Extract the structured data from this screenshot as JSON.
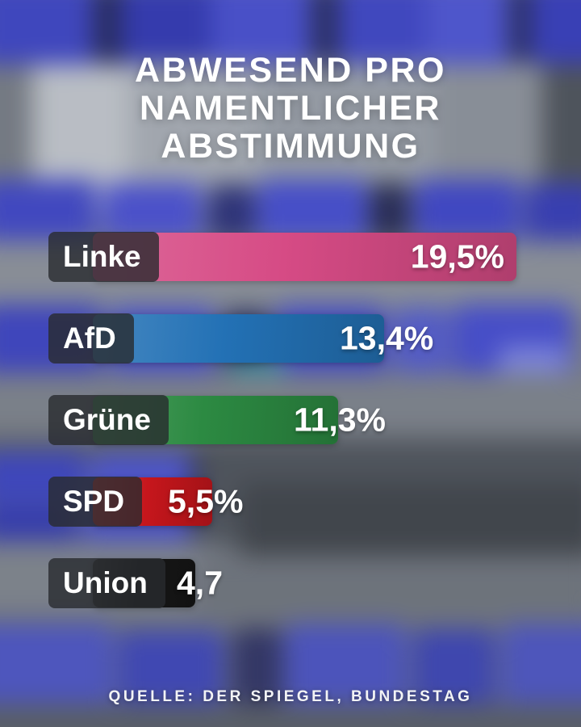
{
  "title_lines": [
    "ABWESEND PRO",
    "NAMENTLICHER",
    "ABSTIMMUNG"
  ],
  "source": "QUELLE: DER SPIEGEL, BUNDESTAG",
  "chart_data": {
    "type": "bar",
    "orientation": "horizontal",
    "title": "ABWESEND PRO NAMENTLICHER ABSTIMMUNG",
    "categories": [
      "Linke",
      "AfD",
      "Grüne",
      "SPD",
      "Union"
    ],
    "values": [
      19.5,
      13.4,
      11.3,
      5.5,
      4.7
    ],
    "value_labels": [
      "19,5%",
      "13,4%",
      "11,3%",
      "5,5%",
      "4,7"
    ],
    "colors": [
      "#d64b85",
      "#2371b5",
      "#2c8a42",
      "#c6161c",
      "#161616"
    ],
    "xlim": [
      0,
      20
    ],
    "grid": false,
    "legend": false,
    "source": "QUELLE: DER SPIEGEL, BUNDESTAG"
  }
}
